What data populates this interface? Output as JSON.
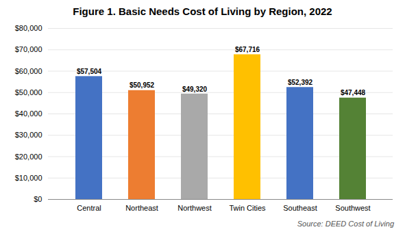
{
  "chart_data": {
    "type": "bar",
    "title": "Figure 1. Basic Needs Cost of Living by Region, 2022",
    "categories": [
      "Central",
      "Northeast",
      "Northwest",
      "Twin Cities",
      "Southeast",
      "Southwest"
    ],
    "values": [
      57504,
      50952,
      49320,
      67716,
      52392,
      47448
    ],
    "value_labels": [
      "$57,504",
      "$50,952",
      "$49,320",
      "$67,716",
      "$52,392",
      "$47,448"
    ],
    "colors": [
      "#4472C4",
      "#ED7D31",
      "#A9A9A9",
      "#FFC000",
      "#4472C4",
      "#548235"
    ],
    "ylim": [
      0,
      80000
    ],
    "yticks": [
      {
        "value": 0,
        "label": "$0"
      },
      {
        "value": 10000,
        "label": "$10,000"
      },
      {
        "value": 20000,
        "label": "$20,000"
      },
      {
        "value": 30000,
        "label": "$30,000"
      },
      {
        "value": 40000,
        "label": "$40,000"
      },
      {
        "value": 50000,
        "label": "$50,000"
      },
      {
        "value": 60000,
        "label": "$60,000"
      },
      {
        "value": 70000,
        "label": "$70,000"
      },
      {
        "value": 80000,
        "label": "$80,000"
      }
    ],
    "grid": true,
    "data_labels": true,
    "annotation": "Source: DEED Cost of Living"
  }
}
